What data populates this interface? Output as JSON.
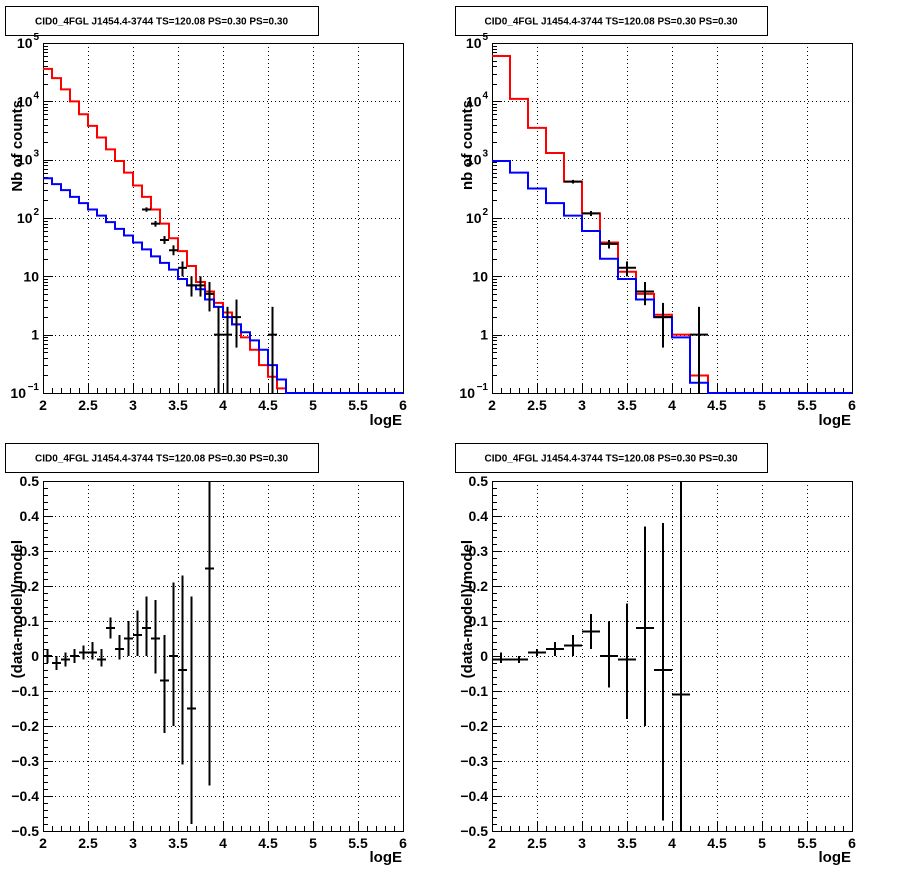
{
  "chart_data": [
    {
      "type": "line",
      "title": "CID0_4FGL J1454.4-3744 TS=120.08 PS=0.30 PS=0.30",
      "xlabel": "logE",
      "ylabel": "Nb of counts",
      "xlim": [
        2,
        6
      ],
      "ylim": [
        0.1,
        100000
      ],
      "yscale": "log",
      "grid": true,
      "x_ticks": [
        "2",
        "2.5",
        "3",
        "3.5",
        "4",
        "4.5",
        "5",
        "5.5",
        "6"
      ],
      "y_ticks": [
        {
          "value": 0.1,
          "base": "10",
          "exp": "−1"
        },
        {
          "value": 1,
          "text": "1"
        },
        {
          "value": 10,
          "text": "10"
        },
        {
          "value": 100,
          "base": "10",
          "exp": "2"
        },
        {
          "value": 1000,
          "base": "10",
          "exp": "3"
        },
        {
          "value": 10000,
          "base": "10",
          "exp": "4"
        },
        {
          "value": 100000,
          "base": "10",
          "exp": "5"
        }
      ],
      "bin_edges": [
        2.0,
        2.1,
        2.2,
        2.3,
        2.4,
        2.5,
        2.6,
        2.7,
        2.8,
        2.9,
        3.0,
        3.1,
        3.2,
        3.3,
        3.4,
        3.5,
        3.6,
        3.7,
        3.8,
        3.9,
        4.0,
        4.1,
        4.2,
        4.3,
        4.4,
        4.5,
        4.6,
        4.7,
        4.8,
        4.9,
        5.0,
        5.1,
        5.2,
        5.3,
        5.4,
        5.5,
        5.6,
        5.7,
        5.8,
        5.9,
        6.0
      ],
      "series": [
        {
          "color": "#ff0000",
          "kind": "step",
          "values": [
            36000,
            25000,
            16000,
            10000,
            6000,
            3800,
            2400,
            1500,
            950,
            600,
            360,
            230,
            140,
            80,
            45,
            27,
            15,
            8,
            5.5,
            3.5,
            2.4,
            1.5,
            0.9,
            0.55,
            0.3,
            0.19,
            0.12,
            0.1,
            0.1,
            0.1,
            0.1,
            0.1,
            0.1,
            0.1,
            0.1,
            0.1,
            0.1,
            0.1,
            0.1,
            0.1
          ]
        },
        {
          "color": "#0000ff",
          "kind": "step",
          "values": [
            480,
            380,
            300,
            230,
            180,
            140,
            110,
            85,
            65,
            50,
            38,
            29,
            22,
            17,
            13,
            9,
            7,
            6,
            4,
            3,
            2,
            1.5,
            1.1,
            0.8,
            0.55,
            0.3,
            0.17,
            0.1,
            0.1,
            0.1,
            0.1,
            0.1,
            0.1,
            0.1,
            0.1,
            0.1,
            0.1,
            0.1,
            0.1,
            0.1
          ]
        },
        {
          "color": "#000000",
          "kind": "points",
          "points": [
            {
              "x": 3.15,
              "y": 140,
              "lo": 128,
              "hi": 152
            },
            {
              "x": 3.25,
              "y": 80,
              "lo": 71,
              "hi": 89
            },
            {
              "x": 3.35,
              "y": 42,
              "lo": 36,
              "hi": 49
            },
            {
              "x": 3.45,
              "y": 28,
              "lo": 23,
              "hi": 34
            },
            {
              "x": 3.55,
              "y": 14,
              "lo": 10,
              "hi": 18
            },
            {
              "x": 3.65,
              "y": 7,
              "lo": 4.5,
              "hi": 10
            },
            {
              "x": 3.75,
              "y": 7,
              "lo": 4.5,
              "hi": 10
            },
            {
              "x": 3.85,
              "y": 5,
              "lo": 2.5,
              "hi": 8
            },
            {
              "x": 3.95,
              "y": 1,
              "lo": 0.1,
              "hi": 3
            },
            {
              "x": 4.05,
              "y": 1,
              "lo": 0.1,
              "hi": 3
            },
            {
              "x": 4.15,
              "y": 2,
              "lo": 0.6,
              "hi": 4
            },
            {
              "x": 4.55,
              "y": 1,
              "lo": 0.1,
              "hi": 3
            }
          ]
        }
      ]
    },
    {
      "type": "line",
      "title": "CID0_4FGL J1454.4-3744 TS=120.08 PS=0.30 PS=0.30",
      "xlabel": "logE",
      "ylabel": "nb of counts",
      "xlim": [
        2,
        6
      ],
      "ylim": [
        0.1,
        100000
      ],
      "yscale": "log",
      "grid": true,
      "x_ticks": [
        "2",
        "2.5",
        "3",
        "3.5",
        "4",
        "4.5",
        "5",
        "5.5",
        "6"
      ],
      "y_ticks": [
        {
          "value": 0.1,
          "base": "10",
          "exp": "−1"
        },
        {
          "value": 1,
          "text": "1"
        },
        {
          "value": 10,
          "text": "10"
        },
        {
          "value": 100,
          "base": "10",
          "exp": "2"
        },
        {
          "value": 1000,
          "base": "10",
          "exp": "3"
        },
        {
          "value": 10000,
          "base": "10",
          "exp": "4"
        },
        {
          "value": 100000,
          "base": "10",
          "exp": "5"
        }
      ],
      "bin_edges": [
        2.0,
        2.2,
        2.4,
        2.6,
        2.8,
        3.0,
        3.2,
        3.4,
        3.6,
        3.8,
        4.0,
        4.2,
        4.4,
        4.6,
        4.8,
        5.0,
        5.2,
        5.4,
        5.6,
        5.8,
        6.0
      ],
      "series": [
        {
          "color": "#ff0000",
          "kind": "step",
          "values": [
            60000,
            11000,
            3500,
            1300,
            420,
            120,
            38,
            12,
            5,
            2.2,
            1,
            0.2,
            0.1,
            0.1,
            0.1,
            0.1,
            0.1,
            0.1,
            0.1,
            0.1
          ]
        },
        {
          "color": "#0000ff",
          "kind": "step",
          "values": [
            950,
            600,
            320,
            180,
            110,
            60,
            20,
            9,
            4,
            2,
            0.9,
            0.15,
            0.1,
            0.1,
            0.1,
            0.1,
            0.1,
            0.1,
            0.1,
            0.1
          ]
        },
        {
          "color": "#000000",
          "kind": "points",
          "points": [
            {
              "x": 2.9,
              "y": 420,
              "lo": 390,
              "hi": 450
            },
            {
              "x": 3.1,
              "y": 120,
              "lo": 108,
              "hi": 132
            },
            {
              "x": 3.3,
              "y": 36,
              "lo": 30,
              "hi": 42
            },
            {
              "x": 3.5,
              "y": 14,
              "lo": 10,
              "hi": 18
            },
            {
              "x": 3.7,
              "y": 5.5,
              "lo": 3.2,
              "hi": 8
            },
            {
              "x": 3.9,
              "y": 2,
              "lo": 0.6,
              "hi": 3.5
            },
            {
              "x": 4.3,
              "y": 1,
              "lo": 0.1,
              "hi": 3
            }
          ]
        }
      ]
    },
    {
      "type": "scatter",
      "title": "CID0_4FGL J1454.4-3744 TS=120.08 PS=0.30 PS=0.30",
      "xlabel": "logE",
      "ylabel": "(data-model)/model",
      "xlim": [
        2,
        6
      ],
      "ylim": [
        -0.5,
        0.5
      ],
      "grid": true,
      "x_ticks": [
        "2",
        "2.5",
        "3",
        "3.5",
        "4",
        "4.5",
        "5",
        "5.5",
        "6"
      ],
      "y_ticks": [
        "−0.5",
        "−0.4",
        "−0.3",
        "−0.2",
        "−0.1",
        "0",
        "0.1",
        "0.2",
        "0.3",
        "0.4",
        "0.5"
      ],
      "points": [
        {
          "x": 2.05,
          "y": 0.0,
          "lo": -0.02,
          "hi": 0.02,
          "xw": 0.05
        },
        {
          "x": 2.15,
          "y": -0.02,
          "lo": -0.04,
          "hi": 0.0,
          "xw": 0.05
        },
        {
          "x": 2.25,
          "y": -0.01,
          "lo": -0.03,
          "hi": 0.01,
          "xw": 0.05
        },
        {
          "x": 2.35,
          "y": 0.0,
          "lo": -0.02,
          "hi": 0.02,
          "xw": 0.05
        },
        {
          "x": 2.45,
          "y": 0.01,
          "lo": -0.01,
          "hi": 0.03,
          "xw": 0.05
        },
        {
          "x": 2.55,
          "y": 0.01,
          "lo": -0.01,
          "hi": 0.04,
          "xw": 0.05
        },
        {
          "x": 2.65,
          "y": -0.01,
          "lo": -0.03,
          "hi": 0.02,
          "xw": 0.05
        },
        {
          "x": 2.75,
          "y": 0.08,
          "lo": 0.05,
          "hi": 0.11,
          "xw": 0.05
        },
        {
          "x": 2.85,
          "y": 0.02,
          "lo": -0.01,
          "hi": 0.06,
          "xw": 0.05
        },
        {
          "x": 2.95,
          "y": 0.05,
          "lo": 0.0,
          "hi": 0.1,
          "xw": 0.05
        },
        {
          "x": 3.05,
          "y": 0.06,
          "lo": 0.0,
          "hi": 0.13,
          "xw": 0.05
        },
        {
          "x": 3.15,
          "y": 0.08,
          "lo": 0.0,
          "hi": 0.17,
          "xw": 0.05
        },
        {
          "x": 3.25,
          "y": 0.05,
          "lo": -0.05,
          "hi": 0.16,
          "xw": 0.05
        },
        {
          "x": 3.35,
          "y": -0.07,
          "lo": -0.22,
          "hi": 0.06,
          "xw": 0.05
        },
        {
          "x": 3.45,
          "y": 0.0,
          "lo": -0.2,
          "hi": 0.21,
          "xw": 0.05
        },
        {
          "x": 3.55,
          "y": -0.04,
          "lo": -0.31,
          "hi": 0.23,
          "xw": 0.05
        },
        {
          "x": 3.65,
          "y": -0.15,
          "lo": -0.48,
          "hi": 0.17,
          "xw": 0.05
        },
        {
          "x": 3.85,
          "y": 0.25,
          "lo": -0.37,
          "hi": 0.5,
          "xw": 0.05
        }
      ]
    },
    {
      "type": "scatter",
      "title": "CID0_4FGL J1454.4-3744 TS=120.08 PS=0.30 PS=0.30",
      "xlabel": "logE",
      "ylabel": "(data-model)/model",
      "xlim": [
        2,
        6
      ],
      "ylim": [
        -0.5,
        0.5
      ],
      "grid": true,
      "x_ticks": [
        "2",
        "2.5",
        "3",
        "3.5",
        "4",
        "4.5",
        "5",
        "5.5",
        "6"
      ],
      "y_ticks": [
        "−0.5",
        "−0.4",
        "−0.3",
        "−0.2",
        "−0.1",
        "0",
        "0.1",
        "0.2",
        "0.3",
        "0.4",
        "0.5"
      ],
      "points": [
        {
          "x": 2.1,
          "y": -0.01,
          "lo": -0.02,
          "hi": 0.01,
          "xw": 0.1
        },
        {
          "x": 2.3,
          "y": -0.01,
          "lo": -0.02,
          "hi": 0.0,
          "xw": 0.1
        },
        {
          "x": 2.5,
          "y": 0.01,
          "lo": 0.0,
          "hi": 0.02,
          "xw": 0.1
        },
        {
          "x": 2.7,
          "y": 0.02,
          "lo": 0.0,
          "hi": 0.04,
          "xw": 0.1
        },
        {
          "x": 2.9,
          "y": 0.03,
          "lo": 0.0,
          "hi": 0.06,
          "xw": 0.1
        },
        {
          "x": 3.1,
          "y": 0.07,
          "lo": 0.02,
          "hi": 0.12,
          "xw": 0.1
        },
        {
          "x": 3.3,
          "y": 0.0,
          "lo": -0.09,
          "hi": 0.1,
          "xw": 0.1
        },
        {
          "x": 3.5,
          "y": -0.01,
          "lo": -0.18,
          "hi": 0.15,
          "xw": 0.1
        },
        {
          "x": 3.7,
          "y": 0.08,
          "lo": -0.2,
          "hi": 0.37,
          "xw": 0.1
        },
        {
          "x": 3.9,
          "y": -0.04,
          "lo": -0.47,
          "hi": 0.38,
          "xw": 0.1
        },
        {
          "x": 4.1,
          "y": -0.11,
          "lo": -0.5,
          "hi": 0.5,
          "xw": 0.1
        }
      ]
    }
  ]
}
